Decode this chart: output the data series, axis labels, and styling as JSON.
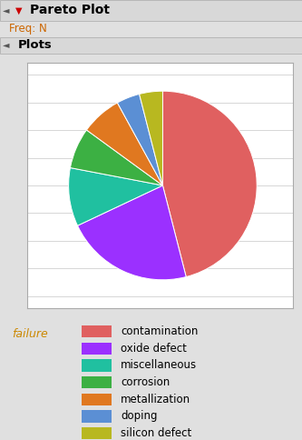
{
  "title": "Pareto Plot",
  "freq_label": "Freq: N",
  "section_label": "Plots",
  "labels": [
    "contamination",
    "oxide defect",
    "miscellaneous",
    "corrosion",
    "metallization",
    "doping",
    "silicon defect"
  ],
  "sizes": [
    46,
    22,
    10,
    7,
    7,
    4,
    4
  ],
  "colors": [
    "#e06060",
    "#9b30ff",
    "#20c0a0",
    "#3cb043",
    "#e07820",
    "#5b8fd4",
    "#b8b820"
  ],
  "legend_label": "failure",
  "bg_color": "#e0e0e0",
  "plot_bg_color": "#ffffff",
  "grid_color": "#d0d0d0",
  "header_bg": "#d4d4d4",
  "startangle": 90,
  "counterclock": false,
  "header1_fontsize": 10,
  "header2_fontsize": 9,
  "legend_fontsize": 9,
  "freq_color": "#cc6600",
  "legend_label_color": "#cc8800"
}
